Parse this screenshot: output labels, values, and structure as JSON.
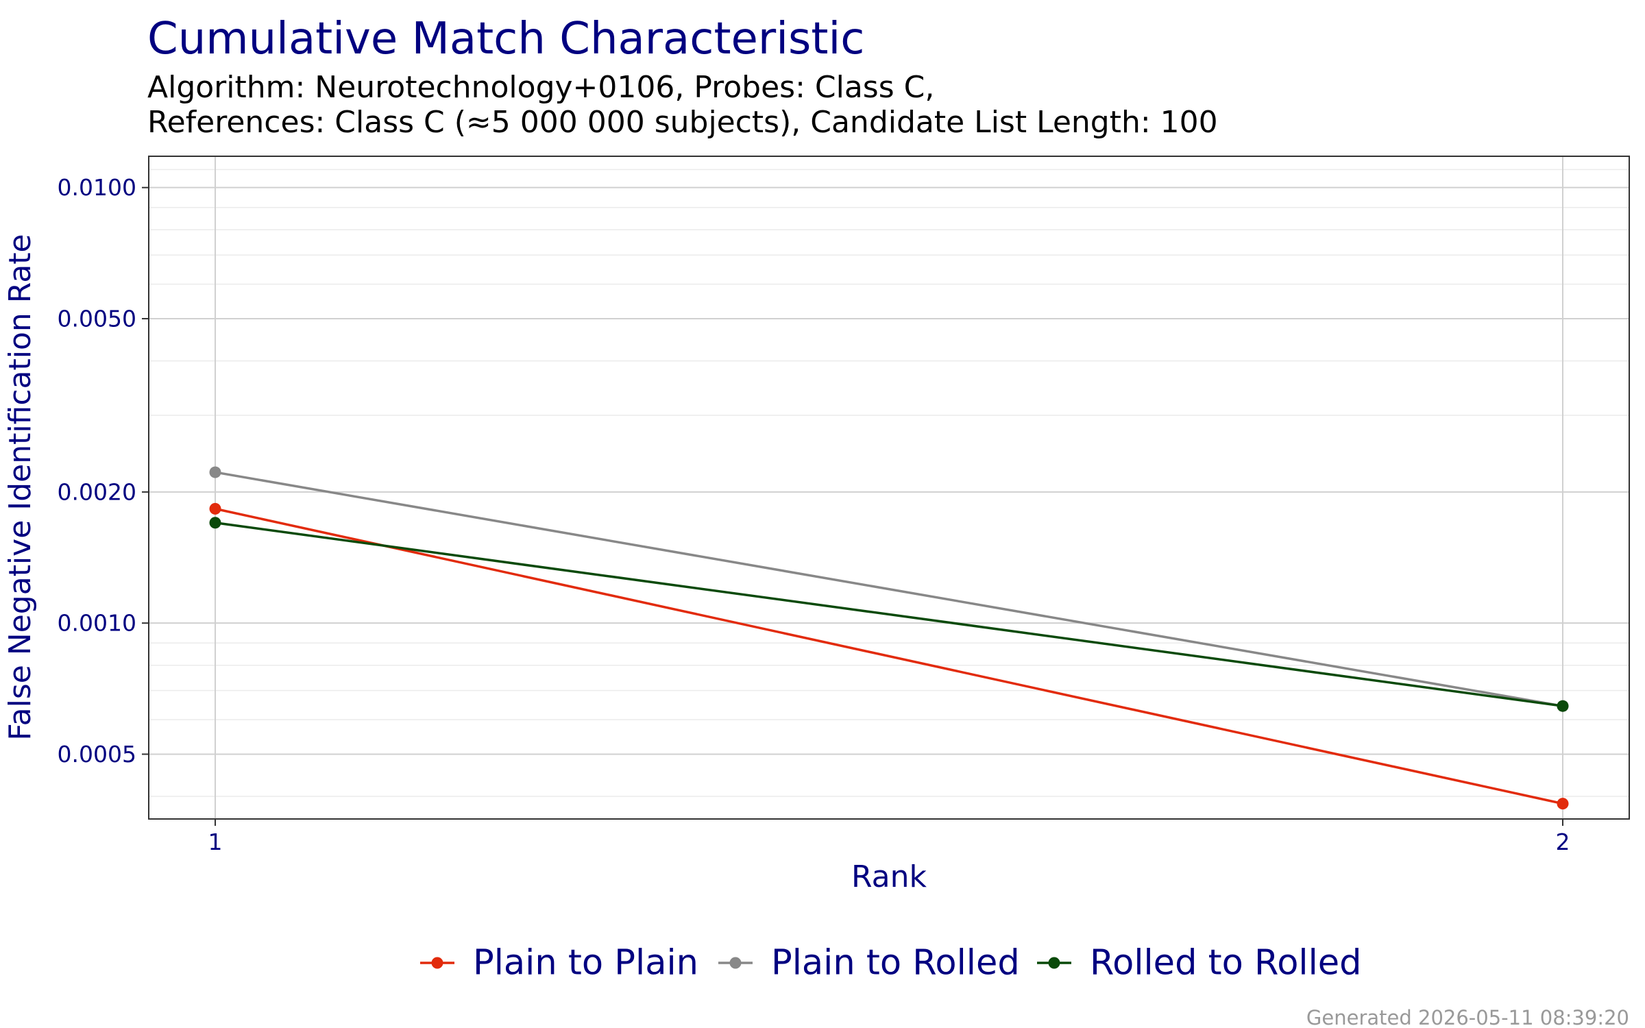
{
  "chart_data": {
    "type": "line",
    "title": "Cumulative Match Characteristic",
    "subtitle_lines": [
      "Algorithm: Neurotechnology+0106, Probes: Class C,",
      "References: Class C (≈5 000 000 subjects), Candidate List Length: 100"
    ],
    "xlabel": "Rank",
    "ylabel": "False Negative Identification Rate",
    "x": [
      1,
      2
    ],
    "xticks": [
      "1",
      "2"
    ],
    "y_scale": "log",
    "ylim": [
      0.000355,
      0.0118
    ],
    "yticks": [
      0.0005,
      0.001,
      0.002,
      0.005,
      0.01
    ],
    "ytick_labels": [
      "0.0005",
      "0.0010",
      "0.0020",
      "0.0050",
      "0.0100"
    ],
    "grid": true,
    "legend_position": "bottom",
    "series": [
      {
        "name": "Plain to Plain",
        "color": "#e22b0c",
        "values": [
          0.00183,
          0.000385
        ]
      },
      {
        "name": "Plain to Rolled",
        "color": "#888888",
        "values": [
          0.00222,
          0.000645
        ]
      },
      {
        "name": "Rolled to Rolled",
        "color": "#0a4a0a",
        "values": [
          0.0017,
          0.000645
        ]
      }
    ]
  },
  "footer": "Generated 2026-05-11 08:39:20"
}
